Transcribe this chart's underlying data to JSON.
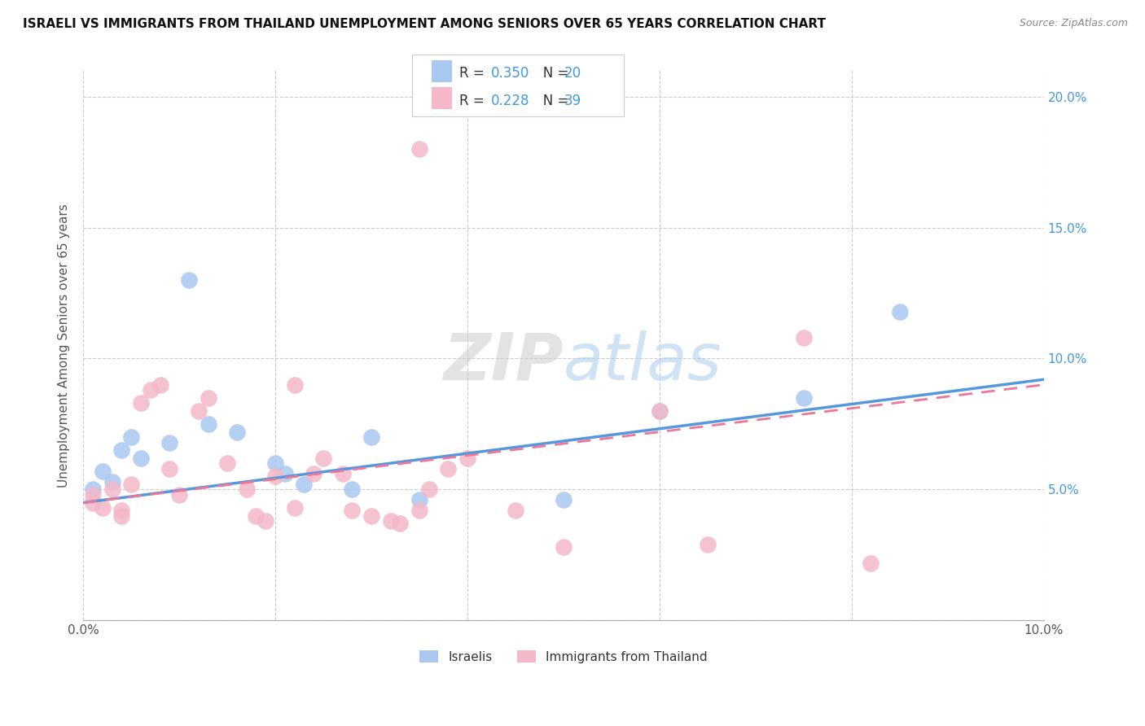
{
  "title": "ISRAELI VS IMMIGRANTS FROM THAILAND UNEMPLOYMENT AMONG SENIORS OVER 65 YEARS CORRELATION CHART",
  "source": "Source: ZipAtlas.com",
  "ylabel": "Unemployment Among Seniors over 65 years",
  "xlim": [
    0.0,
    0.1
  ],
  "ylim": [
    0.0,
    0.21
  ],
  "xtick_positions": [
    0.0,
    0.02,
    0.04,
    0.06,
    0.08,
    0.1
  ],
  "xticklabels": [
    "0.0%",
    "",
    "",
    "",
    "",
    "10.0%"
  ],
  "ytick_positions": [
    0.0,
    0.05,
    0.1,
    0.15,
    0.2
  ],
  "yticklabels_right": [
    "",
    "5.0%",
    "10.0%",
    "15.0%",
    "20.0%"
  ],
  "israelis_color": "#a8c8f0",
  "thailand_color": "#f4b8c8",
  "israelis_line_color": "#5599dd",
  "thailand_line_color": "#ee7799",
  "israelis_R": 0.35,
  "israelis_N": 20,
  "thailand_R": 0.228,
  "thailand_N": 39,
  "legend_label_israelis": "Israelis",
  "legend_label_thailand": "Immigrants from Thailand",
  "watermark": "ZIPatlas",
  "israelis_x": [
    0.001,
    0.002,
    0.003,
    0.004,
    0.005,
    0.006,
    0.009,
    0.011,
    0.013,
    0.016,
    0.02,
    0.021,
    0.023,
    0.028,
    0.03,
    0.035,
    0.05,
    0.06,
    0.075,
    0.085
  ],
  "israelis_y": [
    0.05,
    0.057,
    0.053,
    0.065,
    0.07,
    0.062,
    0.068,
    0.13,
    0.075,
    0.072,
    0.06,
    0.056,
    0.052,
    0.05,
    0.07,
    0.046,
    0.046,
    0.08,
    0.085,
    0.118
  ],
  "thailand_x": [
    0.001,
    0.001,
    0.002,
    0.003,
    0.004,
    0.004,
    0.005,
    0.006,
    0.007,
    0.008,
    0.009,
    0.01,
    0.012,
    0.013,
    0.015,
    0.017,
    0.018,
    0.019,
    0.02,
    0.022,
    0.022,
    0.024,
    0.025,
    0.027,
    0.028,
    0.03,
    0.032,
    0.033,
    0.035,
    0.036,
    0.038,
    0.04,
    0.045,
    0.05,
    0.035,
    0.06,
    0.065,
    0.075,
    0.082
  ],
  "thailand_y": [
    0.048,
    0.045,
    0.043,
    0.05,
    0.042,
    0.04,
    0.052,
    0.083,
    0.088,
    0.09,
    0.058,
    0.048,
    0.08,
    0.085,
    0.06,
    0.05,
    0.04,
    0.038,
    0.055,
    0.09,
    0.043,
    0.056,
    0.062,
    0.056,
    0.042,
    0.04,
    0.038,
    0.037,
    0.042,
    0.05,
    0.058,
    0.062,
    0.042,
    0.028,
    0.18,
    0.08,
    0.029,
    0.108,
    0.022
  ]
}
